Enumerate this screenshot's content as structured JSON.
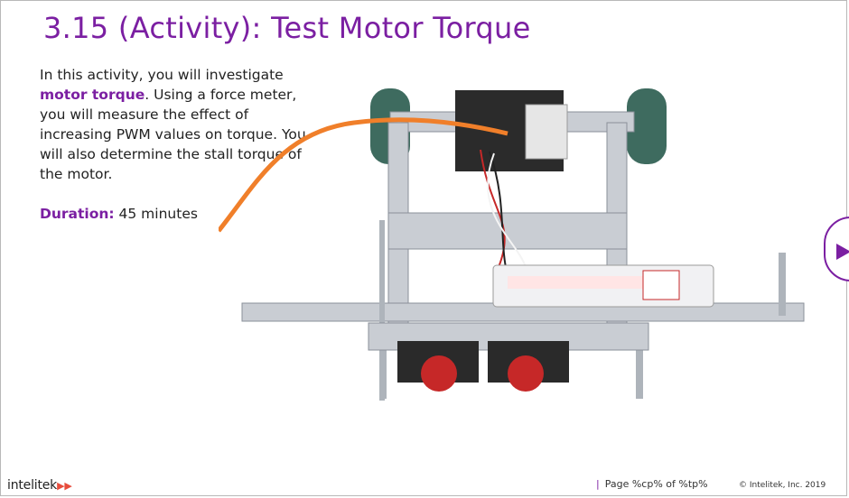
{
  "slide": {
    "title": "3.15 (Activity): Test Motor Torque",
    "intro_pre": "In this activity, you will investigate",
    "keyword": "motor torque",
    "intro_post": ". Using a force meter, you will measure the effect of increasing PWM values on torque. You will also determine the stall torque of the motor.",
    "duration_label": "Duration:",
    "duration_value": " 45 minutes"
  },
  "photo": {
    "content": "robot chassis with motor and force meter"
  },
  "nav": {
    "next_icon": "play-triangle-icon"
  },
  "footer": {
    "logo_text": "intelitek",
    "logo_arrows": "▶▶",
    "page_bar": "|",
    "page_text": "Page  %cp% of %tp%",
    "copyright": "© Intelitek, Inc. 2019"
  },
  "colors": {
    "accent": "#7b1fa2",
    "cable": "#f07f2a",
    "metal": "#c9cdd3",
    "wheel": "#3e6b5f"
  }
}
